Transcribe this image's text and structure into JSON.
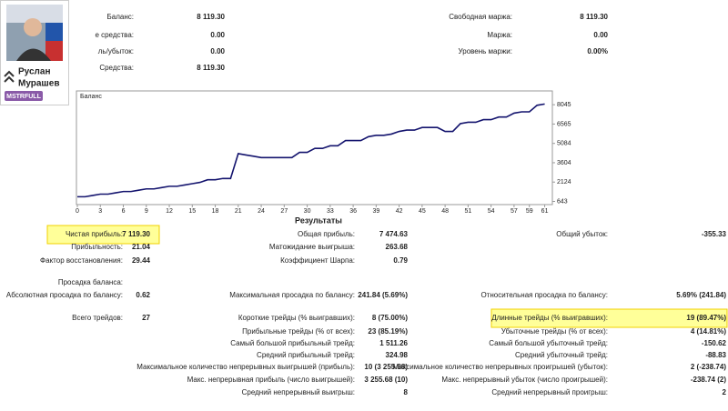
{
  "profile": {
    "name": "Руслан Мурашев",
    "badge": "MSTRFULL"
  },
  "account": {
    "rows": [
      [
        {
          "label": "Баланс:",
          "value": "8 119.30"
        },
        {
          "label": "Свободная маржа:",
          "value": "8 119.30"
        }
      ],
      [
        {
          "label": "е средства:",
          "value": "0.00"
        },
        {
          "label": "Маржа:",
          "value": "0.00"
        }
      ],
      [
        {
          "label": "ль/убыток:",
          "value": "0.00"
        },
        {
          "label": "Уровень маржи:",
          "value": "0.00%"
        }
      ],
      [
        {
          "label": "Средства:",
          "value": "8 119.30"
        },
        null
      ]
    ]
  },
  "chart_data": {
    "type": "line",
    "title": "Баланс",
    "color": "#14146e",
    "x": [
      0,
      1,
      2,
      3,
      4,
      5,
      6,
      7,
      8,
      9,
      10,
      11,
      12,
      13,
      14,
      15,
      16,
      17,
      18,
      19,
      20,
      21,
      22,
      23,
      24,
      25,
      26,
      27,
      28,
      29,
      30,
      31,
      32,
      33,
      34,
      35,
      36,
      37,
      38,
      39,
      40,
      41,
      42,
      43,
      44,
      45,
      46,
      47,
      48,
      49,
      50,
      51,
      52,
      53,
      54,
      55,
      56,
      57,
      58,
      59,
      60,
      61
    ],
    "values": [
      1000,
      1000,
      1100,
      1200,
      1200,
      1300,
      1400,
      1400,
      1500,
      1600,
      1600,
      1700,
      1800,
      1800,
      1900,
      2000,
      2100,
      2300,
      2300,
      2400,
      2400,
      4300,
      4200,
      4100,
      4000,
      4000,
      4000,
      4000,
      4000,
      4400,
      4400,
      4700,
      4700,
      4900,
      4900,
      5300,
      5300,
      5300,
      5600,
      5700,
      5700,
      5800,
      6000,
      6100,
      6100,
      6300,
      6300,
      6300,
      6000,
      6000,
      6600,
      6700,
      6700,
      6900,
      6900,
      7100,
      7100,
      7400,
      7500,
      7500,
      8000,
      8100
    ],
    "xlim": [
      0,
      62
    ],
    "ylim": [
      400,
      9100
    ],
    "xticks": [
      0,
      3,
      6,
      9,
      12,
      15,
      18,
      21,
      24,
      27,
      30,
      33,
      36,
      39,
      42,
      45,
      48,
      51,
      54,
      57,
      59,
      61
    ],
    "yticks": [
      643,
      2124,
      3604,
      5084,
      6565,
      8045
    ]
  },
  "report": {
    "title": "Результаты",
    "rows": [
      [
        {
          "label": "Чистая прибыль:",
          "value": "7 119.30",
          "highlight": true
        },
        {
          "label": "Общая прибыль:",
          "value": "7 474.63"
        },
        {
          "label": "Общий убыток:",
          "value": "-355.33"
        }
      ],
      [
        {
          "label": "Прибыльность:",
          "value": "21.04"
        },
        {
          "label": "Матожидание выигрыша:",
          "value": "263.68"
        },
        null
      ],
      [
        {
          "label": "Фактор восстановления:",
          "value": "29.44"
        },
        {
          "label": "Коэффициент Шарпа:",
          "value": "0.79"
        },
        null
      ],
      [
        {
          "label": "Просадка баланса:"
        },
        null,
        null
      ],
      [
        {
          "label": "Абсолютная просадка по балансу:",
          "value": "0.62"
        },
        {
          "label": "Максимальная просадка по балансу:",
          "value": "241.84 (5.69%)"
        },
        {
          "label": "Относительная просадка по балансу:",
          "value": "5.69% (241.84)"
        }
      ],
      [
        {
          "label": "Всего трейдов:",
          "value": "27"
        },
        {
          "label": "Короткие трейды (% выигравших):",
          "value": "8 (75.00%)"
        },
        {
          "label": "Длинные трейды (% выигравших):",
          "value": "19 (89.47%)",
          "highlight": true
        }
      ],
      [
        null,
        {
          "label": "Прибыльные трейды (% от всех):",
          "value": "23 (85.19%)"
        },
        {
          "label": "Убыточные трейды (% от всех):",
          "value": "4 (14.81%)"
        }
      ],
      [
        null,
        {
          "label": "Самый большой прибыльный трейд:",
          "value": "1 511.26"
        },
        {
          "label": "Самый большой убыточный трейд:",
          "value": "-150.62"
        }
      ],
      [
        null,
        {
          "label": "Средний прибыльный трейд:",
          "value": "324.98"
        },
        {
          "label": "Средний убыточный трейд:",
          "value": "-88.83"
        }
      ],
      [
        null,
        {
          "label": "Максимальное количество непрерывных выигрышей (прибыль):",
          "value": "10 (3 255.68)"
        },
        {
          "label": "Максимальное количество непрерывных проигрышей (убыток):",
          "value": "2 (-238.74)"
        }
      ],
      [
        null,
        {
          "label": "Макс. непрерывная прибыль (число выигрышей):",
          "value": "3 255.68 (10)"
        },
        {
          "label": "Макс. непрерывный убыток (число проигрышей):",
          "value": "-238.74 (2)"
        }
      ],
      [
        null,
        {
          "label": "Средний непрерывный выигрыш:",
          "value": "8"
        },
        {
          "label": "Средний непрерывный проигрыш:",
          "value": "2"
        }
      ]
    ]
  }
}
